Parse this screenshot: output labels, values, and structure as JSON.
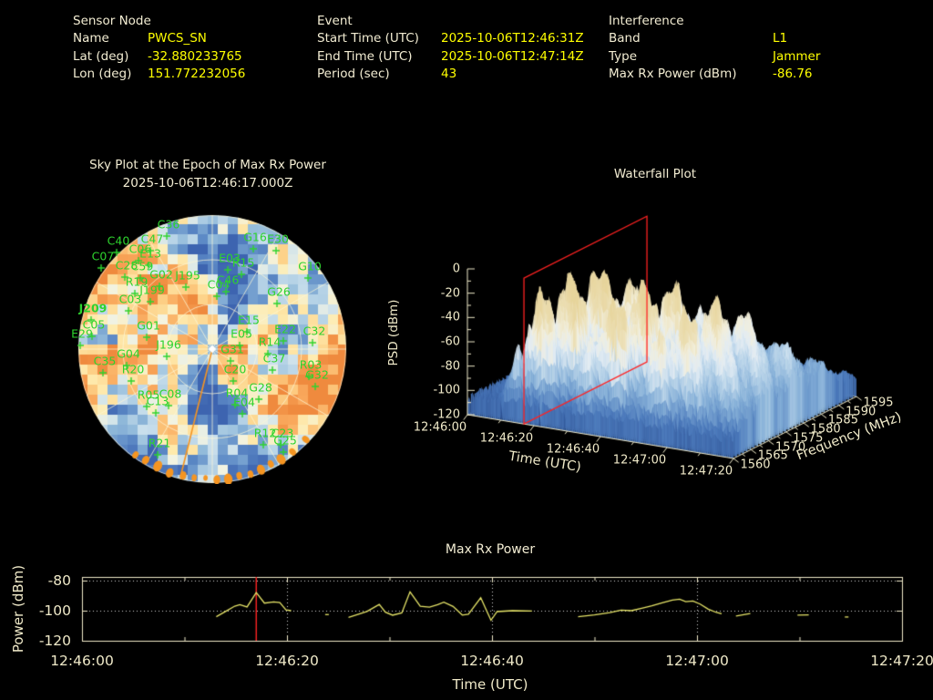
{
  "header": {
    "columns": [
      {
        "title": "Sensor Node",
        "rows": [
          [
            "Name",
            "PWCS_SN"
          ],
          [
            "Lat (deg)",
            "-32.880233765"
          ],
          [
            "Lon (deg)",
            "151.772232056"
          ]
        ]
      },
      {
        "title": "Event",
        "rows": [
          [
            "Start Time (UTC)",
            "2025-10-06T12:46:31Z"
          ],
          [
            "End Time (UTC)",
            "2025-10-06T12:47:14Z"
          ],
          [
            "Period (sec)",
            "43"
          ]
        ]
      },
      {
        "title": "Interference",
        "rows": [
          [
            "Band",
            "L1"
          ],
          [
            "Type",
            "Jammer"
          ],
          [
            "Max Rx Power (dBm)",
            "-86.76"
          ]
        ]
      }
    ]
  },
  "colors": {
    "value_yellow": "#ffff00",
    "text_beige": "#f2ecd2",
    "axis_beige": "#efe9c8",
    "satellite_green": "#2ed32e",
    "epoch_red": "#ff2222",
    "line_yellow": "#e6e468",
    "horizon_orange": "#f59522"
  },
  "chart_data": [
    {
      "name": "sky_plot",
      "type": "polar-heatmap",
      "title": "Sky Plot at the Epoch of Max Rx Power",
      "subtitle": "2025-10-06T12:46:17.000Z",
      "colormap": "RdYlBu",
      "elevation_rings_deg": [
        0,
        30,
        60
      ],
      "azimuth_spoke_step_deg": 30,
      "satellites": [
        [
          "C36",
          100,
          11
        ],
        [
          "C47",
          82,
          27
        ],
        [
          "C40",
          45,
          29
        ],
        [
          "C06",
          69,
          38
        ],
        [
          "E13",
          80,
          43
        ],
        [
          "C07",
          28,
          46
        ],
        [
          "C28",
          54,
          56
        ],
        [
          "C59",
          71,
          57
        ],
        [
          "G02",
          92,
          66
        ],
        [
          "J195",
          121,
          67
        ],
        [
          "R19",
          65,
          74
        ],
        [
          "J199",
          82,
          83
        ],
        [
          "C03",
          58,
          93
        ],
        [
          "J209",
          17,
          103
        ],
        [
          "C05",
          18,
          121
        ],
        [
          "E29",
          5,
          131
        ],
        [
          "G01",
          78,
          122
        ],
        [
          "J196",
          100,
          143
        ],
        [
          "G16",
          195,
          25
        ],
        [
          "E30",
          220,
          27
        ],
        [
          "E03",
          167,
          48
        ],
        [
          "R15",
          182,
          53
        ],
        [
          "G10",
          255,
          57
        ],
        [
          "C46",
          165,
          72
        ],
        [
          "C04",
          155,
          77
        ],
        [
          "G26",
          221,
          85
        ],
        [
          "E15",
          188,
          116
        ],
        [
          "E22",
          228,
          126
        ],
        [
          "C32",
          260,
          128
        ],
        [
          "E05",
          180,
          131
        ],
        [
          "R14",
          211,
          140
        ],
        [
          "G31",
          170,
          148
        ],
        [
          "G04",
          56,
          153
        ],
        [
          "C35",
          30,
          161
        ],
        [
          "R20",
          61,
          170
        ],
        [
          "C37",
          216,
          158
        ],
        [
          "R03",
          256,
          165
        ],
        [
          "G32",
          263,
          176
        ],
        [
          "C20",
          173,
          170
        ],
        [
          "G28",
          201,
          190
        ],
        [
          "R04",
          175,
          196
        ],
        [
          "E04",
          183,
          206
        ],
        [
          "R05",
          78,
          198
        ],
        [
          "C08",
          102,
          197
        ],
        [
          "C13",
          88,
          205
        ],
        [
          "R12",
          206,
          240
        ],
        [
          "C23",
          225,
          240
        ],
        [
          "G25",
          228,
          248
        ],
        [
          "R21",
          90,
          251
        ]
      ],
      "jammer_label": "J209",
      "jammer_bearing_line_deg": 104,
      "horizon_dots_deg": [
        44,
        52,
        58,
        63,
        68,
        73,
        78,
        83,
        88,
        93,
        98,
        103,
        109,
        115,
        121,
        126
      ]
    },
    {
      "name": "waterfall",
      "type": "surface",
      "title": "Waterfall Plot",
      "xlabel": "Time (UTC)",
      "ylabel": "Frequency (MHz)",
      "zlabel": "PSD (dBm)",
      "time_tick_labels": [
        "12:46:00",
        "12:46:20",
        "12:46:40",
        "12:47:00",
        "12:47:20"
      ],
      "time_tick_sec": [
        0,
        20,
        40,
        60,
        80
      ],
      "freq_ticks": [
        1560,
        1565,
        1570,
        1575,
        1580,
        1585,
        1590,
        1595
      ],
      "psd_ticks": [
        0,
        -20,
        -40,
        -60,
        -80,
        -100,
        -120
      ],
      "time_range_sec": [
        0,
        80
      ],
      "freq_range_mhz": [
        1560,
        1595
      ],
      "psd_range_dbm": [
        -120,
        0
      ],
      "epoch_marker_sec": 17,
      "psd_floor_dbm": -106,
      "psd_peak_dbm": -24,
      "envelope_time": [
        [
          0,
          0.02
        ],
        [
          7,
          0.05
        ],
        [
          9,
          0.45
        ],
        [
          11,
          0.95
        ],
        [
          14,
          1
        ],
        [
          24,
          1
        ],
        [
          27,
          0.6
        ],
        [
          29,
          0.55
        ],
        [
          31,
          0.95
        ],
        [
          40,
          1
        ],
        [
          43,
          0.8
        ],
        [
          45,
          0.5
        ],
        [
          47,
          0.55
        ],
        [
          49,
          0.85
        ],
        [
          56,
          0.9
        ],
        [
          60,
          0.7
        ],
        [
          64,
          0.6
        ],
        [
          68,
          0.55
        ],
        [
          73,
          0.5
        ],
        [
          77,
          0.4
        ],
        [
          80,
          0.35
        ]
      ],
      "envelope_freq": [
        [
          1560,
          0.06
        ],
        [
          1562,
          0.25
        ],
        [
          1564,
          0.6
        ],
        [
          1567,
          0.92
        ],
        [
          1570,
          1
        ],
        [
          1580,
          1
        ],
        [
          1584,
          0.9
        ],
        [
          1588,
          0.65
        ],
        [
          1591,
          0.4
        ],
        [
          1593,
          0.22
        ],
        [
          1595,
          0.08
        ]
      ]
    },
    {
      "name": "max_rx_power",
      "type": "line",
      "title": "Max Rx Power",
      "xlabel": "Time (UTC)",
      "ylabel": "Power (dBm)",
      "x_tick_labels": [
        "12:46:00",
        "12:46:20",
        "12:46:40",
        "12:47:00",
        "12:47:20"
      ],
      "x_tick_sec": [
        0,
        20,
        40,
        60,
        80
      ],
      "y_ticks": [
        -80,
        -100,
        -120
      ],
      "ylim": [
        -121,
        -78
      ],
      "marker_sec": 17,
      "grid_y_dotted": [
        -80,
        -100
      ],
      "segments": [
        [
          [
            13.1,
            -104
          ],
          [
            14,
            -100.5
          ],
          [
            14.9,
            -97
          ],
          [
            15.4,
            -96
          ],
          [
            16.1,
            -97.5
          ],
          [
            17,
            -88
          ],
          [
            17.8,
            -95
          ],
          [
            18.7,
            -94.2
          ],
          [
            19.3,
            -94.6
          ],
          [
            19.9,
            -99.5
          ],
          [
            20.4,
            -100
          ]
        ],
        [
          [
            23.9,
            -102.6
          ]
        ],
        [
          [
            26,
            -104.5
          ],
          [
            27.8,
            -100.5
          ],
          [
            29,
            -95.8
          ],
          [
            29.6,
            -101
          ],
          [
            30.3,
            -103
          ],
          [
            31.2,
            -101.5
          ],
          [
            32,
            -87.5
          ],
          [
            33,
            -97
          ],
          [
            33.9,
            -97.6
          ],
          [
            34.7,
            -96
          ],
          [
            35.3,
            -94.4
          ],
          [
            36.2,
            -97.2
          ],
          [
            37.1,
            -102.9
          ],
          [
            37.7,
            -102.3
          ],
          [
            38.9,
            -91.4
          ],
          [
            39.4,
            -99
          ],
          [
            39.9,
            -106.4
          ],
          [
            40.5,
            -100.6
          ],
          [
            42,
            -100
          ],
          [
            43.9,
            -100.2
          ]
        ],
        [
          [
            48.4,
            -104
          ],
          [
            50,
            -102.8
          ],
          [
            51.5,
            -101.3
          ],
          [
            52.6,
            -99.6
          ],
          [
            53.6,
            -100
          ],
          [
            54.6,
            -98.4
          ],
          [
            55.6,
            -96.8
          ],
          [
            56.6,
            -94.8
          ],
          [
            57.6,
            -93
          ],
          [
            58.3,
            -92.4
          ],
          [
            58.9,
            -94
          ],
          [
            59.6,
            -93.6
          ],
          [
            60.3,
            -95.6
          ],
          [
            61.1,
            -99
          ],
          [
            61.9,
            -101.2
          ],
          [
            62.4,
            -102.1
          ]
        ],
        [
          [
            63.8,
            -103.5
          ],
          [
            65.2,
            -101.9
          ]
        ],
        [
          [
            69.8,
            -103
          ],
          [
            70.9,
            -102.8
          ]
        ],
        [
          [
            74.6,
            -104.2
          ]
        ]
      ]
    }
  ]
}
